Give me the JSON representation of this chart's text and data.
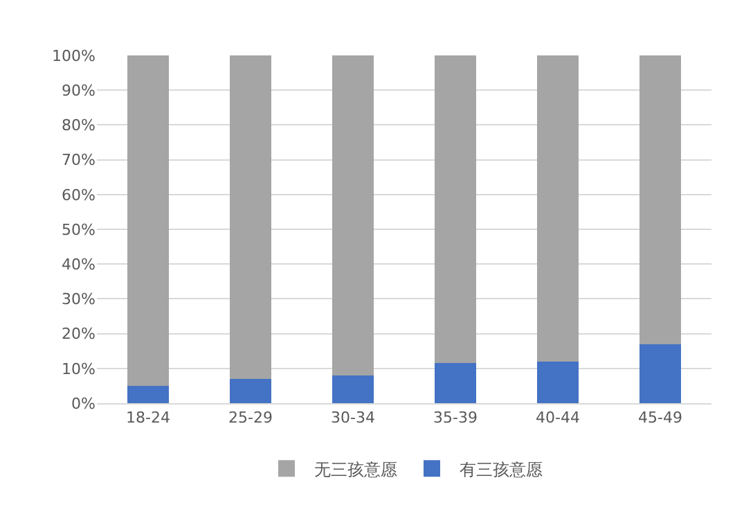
{
  "chart_data": {
    "type": "bar",
    "stacked": true,
    "categories": [
      "18-24",
      "25-29",
      "30-34",
      "35-39",
      "40-44",
      "45-49"
    ],
    "series": [
      {
        "name": "有三孩意愿",
        "color": "#4472c4",
        "values": [
          5,
          7,
          8,
          11.5,
          12,
          17
        ]
      },
      {
        "name": "无三孩意愿",
        "color": "#a5a5a5",
        "values": [
          95,
          93,
          92,
          88.5,
          88,
          83
        ]
      }
    ],
    "ylim": [
      0,
      100
    ],
    "yticks": [
      {
        "value": 0,
        "label": "0%"
      },
      {
        "value": 10,
        "label": "10%"
      },
      {
        "value": 20,
        "label": "20%"
      },
      {
        "value": 30,
        "label": "30%"
      },
      {
        "value": 40,
        "label": "40%"
      },
      {
        "value": 50,
        "label": "50%"
      },
      {
        "value": 60,
        "label": "60%"
      },
      {
        "value": 70,
        "label": "70%"
      },
      {
        "value": 80,
        "label": "80%"
      },
      {
        "value": 90,
        "label": "90%"
      },
      {
        "value": 100,
        "label": "100%"
      }
    ],
    "grid": "y",
    "legend": "bottom"
  }
}
